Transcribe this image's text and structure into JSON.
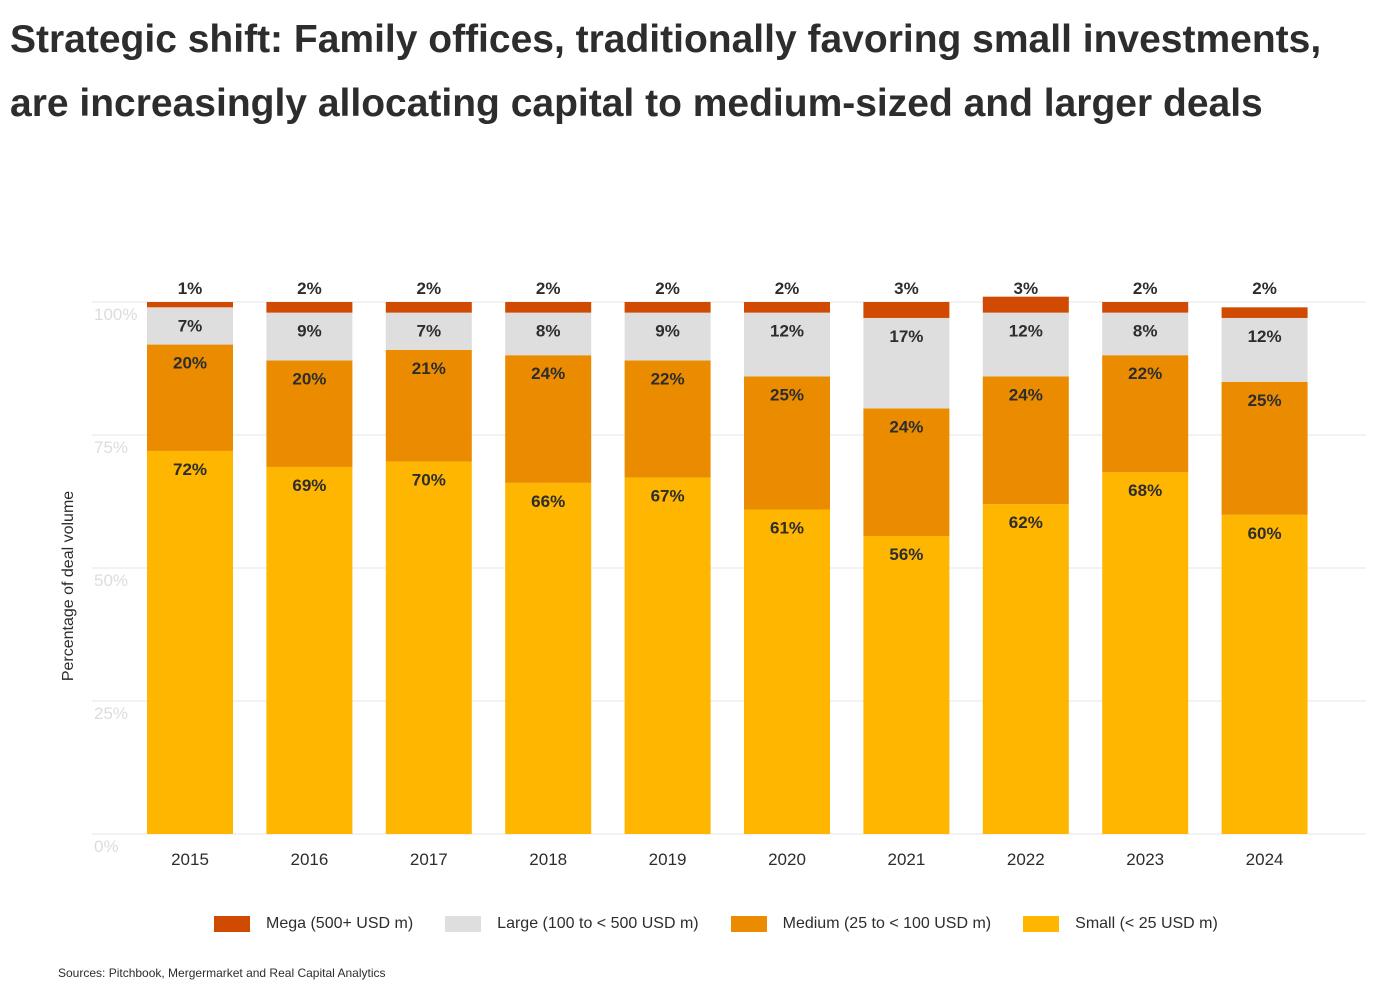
{
  "title": {
    "line1": "Strategic shift: Family offices, traditionally favoring small investments,",
    "line2": "are increasingly allocating capital to medium-sized and larger deals"
  },
  "source": "Sources: Pitchbook, Mergermarket and Real Capital Analytics",
  "colors": {
    "mega": "#d04a02",
    "large": "#dedede",
    "medium": "#eb8c00",
    "small": "#ffb600",
    "grid": "#e4e4e4",
    "tick_label": "#dcdcdc",
    "text": "#2d2d2d"
  },
  "legend": [
    {
      "key": "mega",
      "label": "Mega (500+ USD m)"
    },
    {
      "key": "large",
      "label": "Large (100 to < 500 USD m)"
    },
    {
      "key": "medium",
      "label": "Medium (25 to < 100 USD m)"
    },
    {
      "key": "small",
      "label": "Small (< 25 USD m)"
    }
  ],
  "chart_data": {
    "type": "bar",
    "stacked": true,
    "categories": [
      "2015",
      "2016",
      "2017",
      "2018",
      "2019",
      "2020",
      "2021",
      "2022",
      "2023",
      "2024"
    ],
    "ylabel": "Percentage of deal volume",
    "ylim": [
      0,
      100
    ],
    "yticks": [
      "0%",
      "25%",
      "50%",
      "75%",
      "100%"
    ],
    "grid": true,
    "legend_position": "bottom",
    "series": [
      {
        "key": "small",
        "name": "Small (< 25 USD m)",
        "values": [
          72,
          69,
          70,
          66,
          67,
          61,
          56,
          62,
          68,
          60
        ]
      },
      {
        "key": "medium",
        "name": "Medium (25 to < 100 USD m)",
        "values": [
          20,
          20,
          21,
          24,
          22,
          25,
          24,
          24,
          22,
          25
        ]
      },
      {
        "key": "large",
        "name": "Large (100 to < 500 USD m)",
        "values": [
          7,
          9,
          7,
          8,
          9,
          12,
          17,
          12,
          8,
          12
        ]
      },
      {
        "key": "mega",
        "name": "Mega (500+ USD m)",
        "values": [
          1,
          2,
          2,
          2,
          2,
          2,
          3,
          3,
          2,
          2
        ]
      }
    ]
  }
}
